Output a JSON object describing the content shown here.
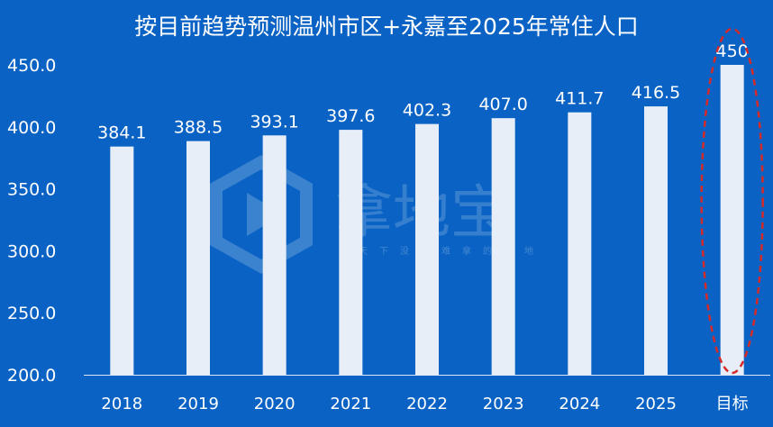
{
  "chart_data": {
    "type": "bar",
    "title": "按目前趋势预测温州市区+永嘉至2025年常住人口",
    "categories": [
      "2018",
      "2019",
      "2020",
      "2021",
      "2022",
      "2023",
      "2024",
      "2025",
      "目标"
    ],
    "values": [
      384.1,
      388.5,
      393.1,
      397.6,
      402.3,
      407.0,
      411.7,
      416.5,
      450
    ],
    "data_labels": [
      "384.1",
      "388.5",
      "393.1",
      "397.6",
      "402.3",
      "407.0",
      "411.7",
      "416.5",
      "450"
    ],
    "ylim": [
      200,
      450
    ],
    "yticks": [
      200,
      250,
      300,
      350,
      400,
      450
    ],
    "ytick_labels": [
      "200.0",
      "250.0",
      "300.0",
      "350.0",
      "400.0",
      "450.0"
    ],
    "xlabel": "",
    "ylabel": "",
    "grid": false,
    "highlight_category": "目标",
    "colors": {
      "background": "#0a63c4",
      "bar": "#e8eef7",
      "text": "#ffffff",
      "highlight_ellipse": "#d42a2a"
    }
  },
  "watermark": {
    "brand": "拿地宝",
    "tagline": "天下没有难拿的土地",
    "logo_icon": "hexagon-play-icon"
  }
}
